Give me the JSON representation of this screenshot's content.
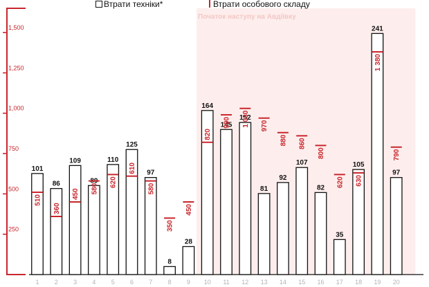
{
  "legend": {
    "equipment_label": "Втрати техніки*",
    "personnel_label": "Втрати особового складу"
  },
  "annotation": {
    "offensive_label": "Початок наступу на Авдіївку"
  },
  "colors": {
    "accent": "#c8262c",
    "bar_stroke": "#111111",
    "shade": "#fdeeed",
    "annotation_text": "#f3c7c4",
    "tick_text": "#b2b2b2"
  },
  "chart_data": {
    "type": "bar",
    "categories": [
      "1",
      "2",
      "3",
      "4",
      "5",
      "6",
      "7",
      "8",
      "9",
      "10",
      "11",
      "12",
      "13",
      "14",
      "15",
      "16",
      "17",
      "18",
      "19",
      "20"
    ],
    "ylim": [
      0,
      1550
    ],
    "y_ticks": [
      {
        "value": 250,
        "label": "250"
      },
      {
        "value": 500,
        "label": "500"
      },
      {
        "value": 750,
        "label": "750"
      },
      {
        "value": 1000,
        "label": "1,000"
      },
      {
        "value": 1250,
        "label": "1,250"
      },
      {
        "value": 1500,
        "label": "1,500"
      }
    ],
    "highlight_range": {
      "from": "10",
      "to": "20"
    },
    "series": [
      {
        "name": "Втрати техніки*",
        "style": "bar",
        "values": [
          101,
          86,
          109,
          89,
          110,
          125,
          97,
          8,
          28,
          164,
          145,
          152,
          81,
          92,
          107,
          82,
          35,
          105,
          241,
          97
        ],
        "bar_scale": 6.2
      },
      {
        "name": "Втрати особового складу",
        "style": "marker",
        "values": [
          510,
          360,
          450,
          580,
          620,
          610,
          580,
          350,
          450,
          820,
          990,
          1030,
          970,
          880,
          860,
          800,
          620,
          630,
          1380,
          790
        ],
        "value_labels": [
          "510",
          "360",
          "450",
          "580",
          "620",
          "610",
          "580",
          "350",
          "450",
          "820",
          "990",
          "1 030",
          "970",
          "880",
          "860",
          "800",
          "620",
          "630",
          "1 380",
          "790"
        ]
      }
    ]
  }
}
